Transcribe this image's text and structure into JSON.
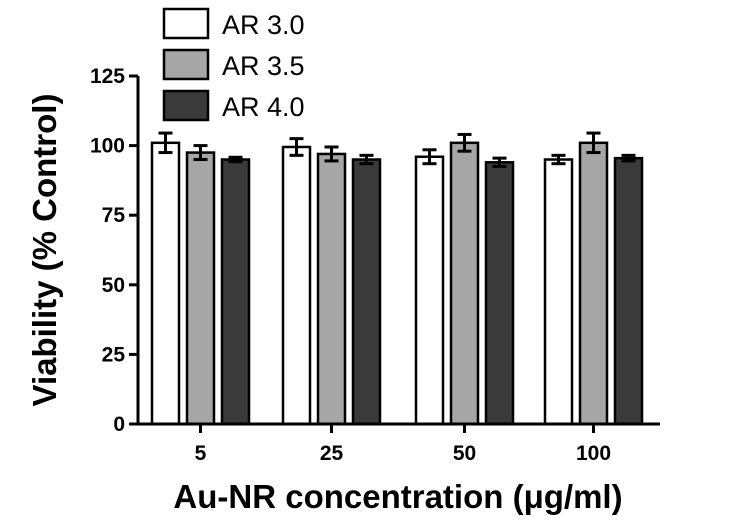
{
  "chart_data": {
    "type": "bar",
    "xlabel": "Au-NR concentration (μg/ml)",
    "ylabel": "Viability (% Control)",
    "categories": [
      "5",
      "25",
      "50",
      "100"
    ],
    "yticks": [
      "0",
      "25",
      "50",
      "75",
      "100",
      "125"
    ],
    "ylim": [
      0,
      125
    ],
    "grid": false,
    "legend_position": "top-left",
    "series": [
      {
        "name": "AR 3.0",
        "color": "#ffffff",
        "values": [
          101,
          99.5,
          96,
          95
        ],
        "errors": [
          3.5,
          3,
          2.5,
          1.5
        ]
      },
      {
        "name": "AR 3.5",
        "color": "#a6a6a6",
        "values": [
          97.5,
          97,
          101,
          101
        ],
        "errors": [
          2.5,
          2.5,
          3,
          3.5
        ]
      },
      {
        "name": "AR 4.0",
        "color": "#3a3a3a",
        "values": [
          95,
          95,
          94,
          95.5
        ],
        "errors": [
          0.8,
          1.5,
          1.5,
          1
        ]
      }
    ]
  }
}
